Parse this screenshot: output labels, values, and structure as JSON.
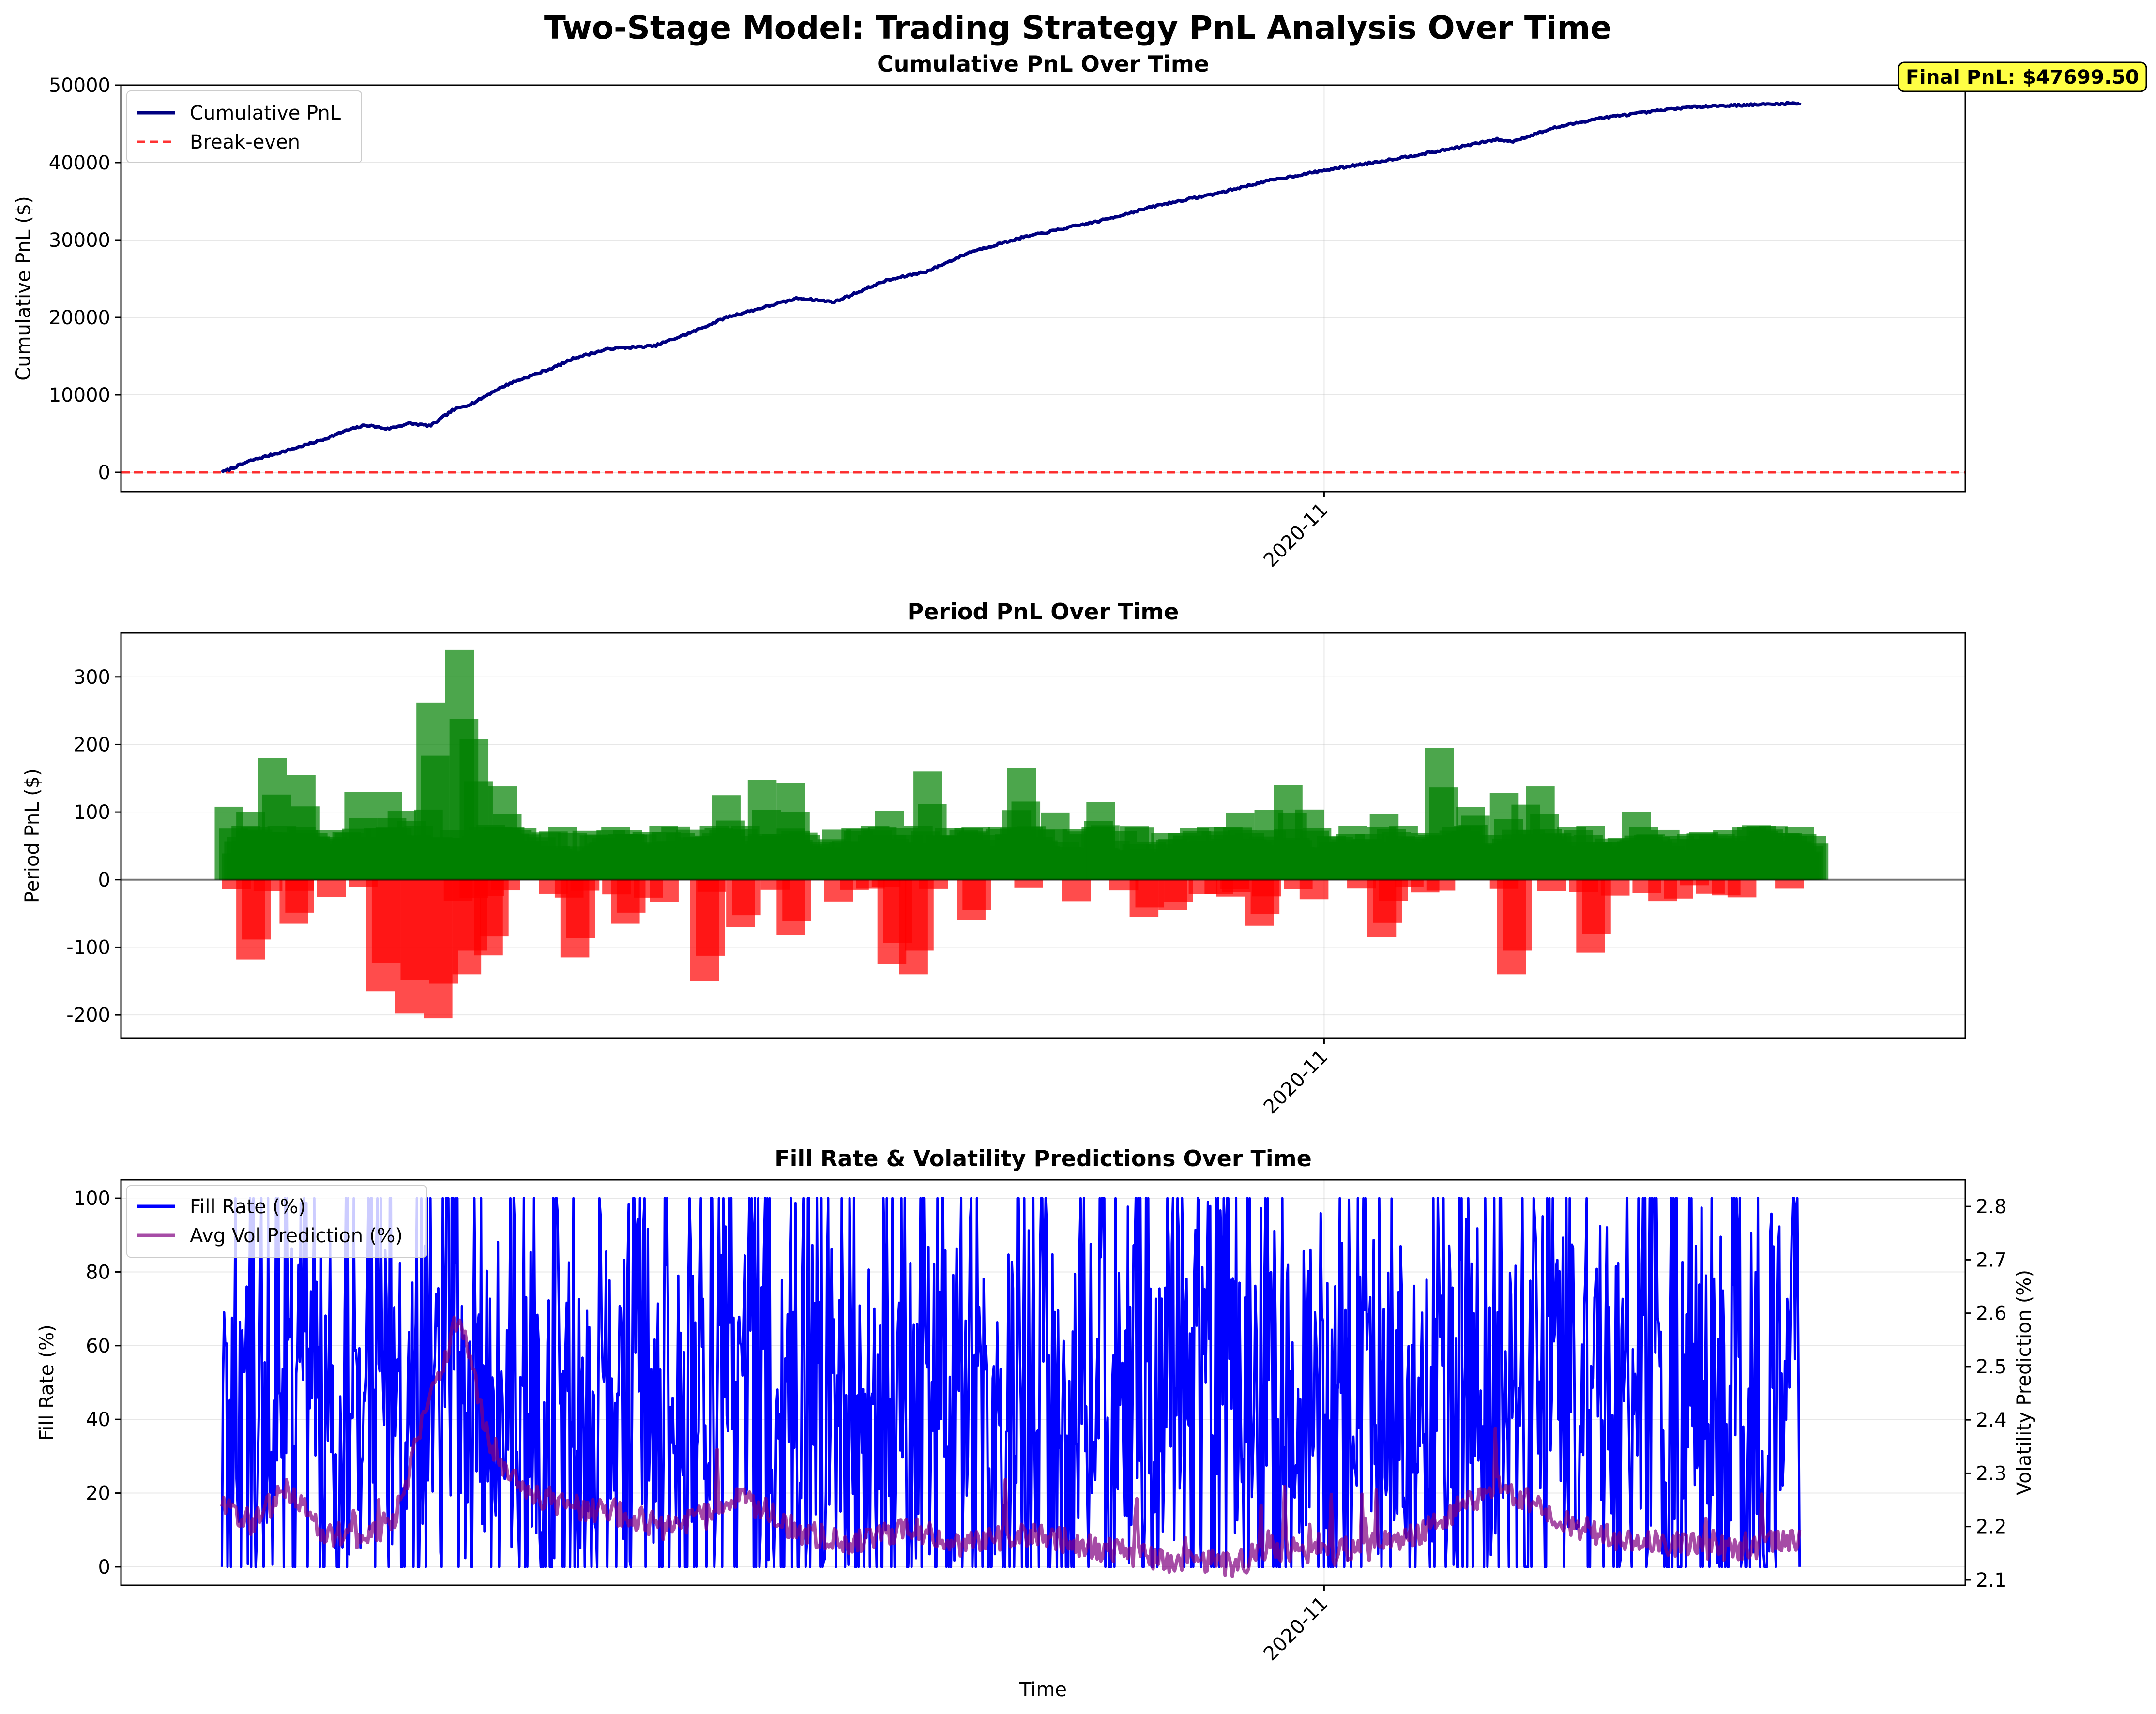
{
  "figure": {
    "title": "Two-Stage Model: Trading Strategy PnL Analysis Over Time",
    "shared_x_tick": "2020-11",
    "xlabel": "Time"
  },
  "colors": {
    "cumulative": "#000080",
    "breakeven": "#ff0000",
    "gain": "#008000",
    "loss": "#ff0000",
    "fill_rate": "#0000ff",
    "vol_pred": "#800080",
    "annotation_bg": "#ffff44"
  },
  "chart_data": [
    {
      "type": "line",
      "title": "Cumulative PnL Over Time",
      "ylabel": "Cumulative PnL ($)",
      "ylim": [
        -2500,
        50000
      ],
      "yticks": [
        0,
        10000,
        20000,
        30000,
        40000,
        50000
      ],
      "x_range": [
        "2020-05-18",
        "2021-01-29"
      ],
      "x_ticks": [
        {
          "date": "2020-11-01",
          "label": "2020-11"
        }
      ],
      "grid": true,
      "legend": "top-left",
      "series": [
        {
          "name": "Cumulative PnL",
          "x": [
            "2020-06-01",
            "2020-06-05",
            "2020-06-10",
            "2020-06-15",
            "2020-06-18",
            "2020-06-21",
            "2020-06-24",
            "2020-06-27",
            "2020-06-30",
            "2020-07-03",
            "2020-07-06",
            "2020-07-09",
            "2020-07-11",
            "2020-07-14",
            "2020-07-17",
            "2020-07-20",
            "2020-07-25",
            "2020-07-31",
            "2020-08-05",
            "2020-08-10",
            "2020-08-12",
            "2020-08-20",
            "2020-08-25",
            "2020-09-01",
            "2020-09-07",
            "2020-09-13",
            "2020-09-20",
            "2020-09-26",
            "2020-10-01",
            "2020-10-09",
            "2020-10-17",
            "2020-10-24",
            "2020-11-01",
            "2020-11-09",
            "2020-11-17",
            "2020-11-25",
            "2020-11-27",
            "2020-12-03",
            "2020-12-09",
            "2020-12-14",
            "2020-12-20",
            "2020-12-24",
            "2021-01-01",
            "2021-01-06"
          ],
          "y": [
            0,
            1500,
            2800,
            4200,
            5300,
            6100,
            5600,
            6300,
            6000,
            8000,
            9000,
            10600,
            11500,
            12500,
            13500,
            14800,
            16000,
            16300,
            18000,
            20000,
            20500,
            22500,
            22000,
            24700,
            26000,
            28500,
            30300,
            31500,
            32500,
            34500,
            36000,
            37600,
            39000,
            40200,
            41500,
            43000,
            42700,
            44500,
            45700,
            46300,
            47000,
            47300,
            47500,
            47699.5
          ]
        },
        {
          "name": "Break-even",
          "y_constant": 0
        }
      ],
      "annotation": "Final PnL: $47699.50"
    },
    {
      "type": "bar",
      "title": "Period PnL Over Time",
      "ylabel": "Period PnL ($)",
      "ylim": [
        -235,
        365
      ],
      "yticks": [
        -200,
        -100,
        0,
        100,
        200,
        300
      ],
      "x_range": [
        "2020-05-18",
        "2021-01-29"
      ],
      "x_ticks": [
        {
          "date": "2020-11-01",
          "label": "2020-11"
        }
      ],
      "grid": true,
      "zero_line": true,
      "positive_peaks": [
        {
          "x": "2020-06-02",
          "value": 108
        },
        {
          "x": "2020-06-05",
          "value": 100
        },
        {
          "x": "2020-06-08",
          "value": 180
        },
        {
          "x": "2020-06-12",
          "value": 155
        },
        {
          "x": "2020-06-20",
          "value": 130
        },
        {
          "x": "2020-06-24",
          "value": 130
        },
        {
          "x": "2020-06-30",
          "value": 262
        },
        {
          "x": "2020-07-04",
          "value": 340
        },
        {
          "x": "2020-07-06",
          "value": 208
        },
        {
          "x": "2020-07-10",
          "value": 138
        },
        {
          "x": "2020-08-10",
          "value": 125
        },
        {
          "x": "2020-08-15",
          "value": 148
        },
        {
          "x": "2020-08-19",
          "value": 143
        },
        {
          "x": "2020-09-07",
          "value": 160
        },
        {
          "x": "2020-09-20",
          "value": 165
        },
        {
          "x": "2020-10-01",
          "value": 115
        },
        {
          "x": "2020-10-27",
          "value": 140
        },
        {
          "x": "2020-11-17",
          "value": 195
        },
        {
          "x": "2020-11-26",
          "value": 128
        },
        {
          "x": "2020-12-01",
          "value": 138
        }
      ],
      "negative_peaks": [
        {
          "x": "2020-06-05",
          "value": -118
        },
        {
          "x": "2020-06-11",
          "value": -65
        },
        {
          "x": "2020-06-23",
          "value": -165
        },
        {
          "x": "2020-06-27",
          "value": -198
        },
        {
          "x": "2020-07-01",
          "value": -205
        },
        {
          "x": "2020-07-05",
          "value": -140
        },
        {
          "x": "2020-07-08",
          "value": -112
        },
        {
          "x": "2020-07-20",
          "value": -115
        },
        {
          "x": "2020-07-27",
          "value": -65
        },
        {
          "x": "2020-08-07",
          "value": -150
        },
        {
          "x": "2020-08-12",
          "value": -70
        },
        {
          "x": "2020-08-19",
          "value": -82
        },
        {
          "x": "2020-09-02",
          "value": -125
        },
        {
          "x": "2020-09-05",
          "value": -140
        },
        {
          "x": "2020-09-13",
          "value": -60
        },
        {
          "x": "2020-10-07",
          "value": -55
        },
        {
          "x": "2020-10-11",
          "value": -45
        },
        {
          "x": "2020-10-19",
          "value": -25
        },
        {
          "x": "2020-10-23",
          "value": -68
        },
        {
          "x": "2020-11-09",
          "value": -85
        },
        {
          "x": "2020-11-27",
          "value": -140
        },
        {
          "x": "2020-12-08",
          "value": -108
        }
      ]
    },
    {
      "type": "line",
      "title": "Fill Rate & Volatility Predictions Over Time",
      "xlabel": "Time",
      "ylabel": "Fill Rate (%)",
      "ylabel_right": "Volatility Prediction (%)",
      "ylim": [
        -5,
        105
      ],
      "ylim_right": [
        2.09,
        2.85
      ],
      "yticks": [
        0,
        20,
        40,
        60,
        80,
        100
      ],
      "yticks_right": [
        2.1,
        2.2,
        2.3,
        2.4,
        2.5,
        2.6,
        2.7,
        2.8
      ],
      "x_range": [
        "2020-05-18",
        "2021-01-29"
      ],
      "x_ticks": [
        {
          "date": "2020-11-01",
          "label": "2020-11"
        }
      ],
      "grid": true,
      "legend": "top-left",
      "series": [
        {
          "name": "Fill Rate (%)",
          "axis": "left",
          "value_range": [
            0,
            100
          ],
          "typical_mean": 45
        },
        {
          "name": "Avg Vol Prediction (%)",
          "axis": "right",
          "x": [
            "2020-06-01",
            "2020-06-05",
            "2020-06-10",
            "2020-06-15",
            "2020-06-20",
            "2020-06-25",
            "2020-06-30",
            "2020-07-04",
            "2020-07-08",
            "2020-07-12",
            "2020-07-18",
            "2020-07-25",
            "2020-08-01",
            "2020-08-08",
            "2020-08-12",
            "2020-08-20",
            "2020-08-28",
            "2020-09-05",
            "2020-09-10",
            "2020-09-20",
            "2020-09-30",
            "2020-10-10",
            "2020-10-20",
            "2020-10-25",
            "2020-11-01",
            "2020-11-07",
            "2020-11-15",
            "2020-11-25",
            "2020-11-30",
            "2020-12-08",
            "2020-12-15",
            "2020-12-25",
            "2021-01-06"
          ],
          "y": [
            2.24,
            2.21,
            2.27,
            2.19,
            2.18,
            2.21,
            2.45,
            2.6,
            2.36,
            2.28,
            2.24,
            2.23,
            2.2,
            2.22,
            2.26,
            2.19,
            2.17,
            2.2,
            2.16,
            2.19,
            2.16,
            2.14,
            2.13,
            2.16,
            2.15,
            2.16,
            2.19,
            2.28,
            2.24,
            2.19,
            2.17,
            2.16,
            2.17
          ]
        }
      ]
    }
  ]
}
